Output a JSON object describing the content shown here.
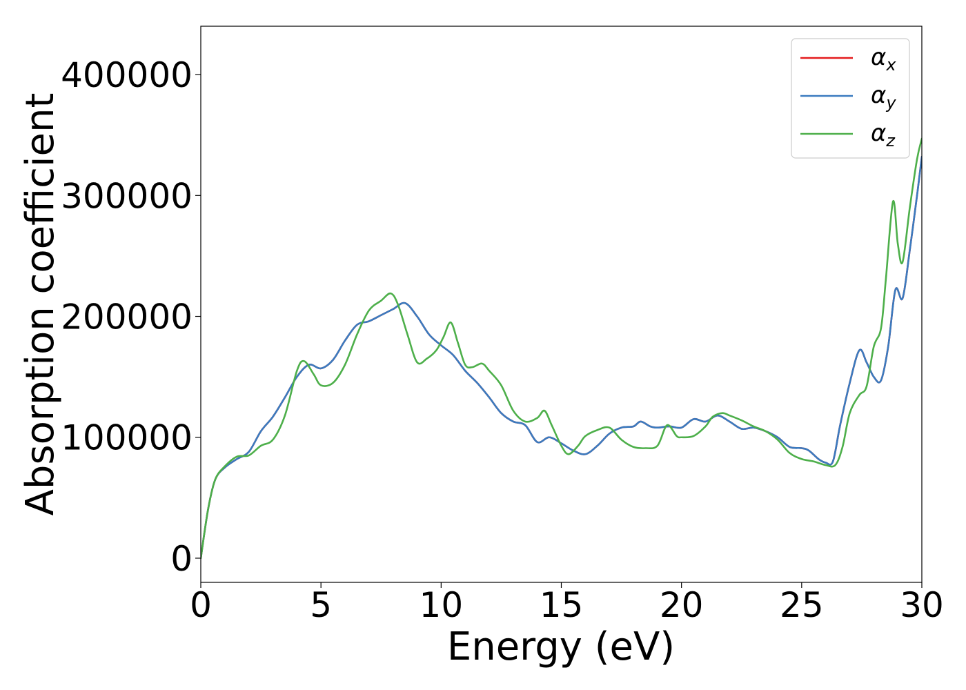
{
  "chart_data": {
    "type": "line",
    "title": "",
    "xlabel": "Energy (eV)",
    "ylabel": "Absorption coefficient",
    "xlim": [
      0,
      30
    ],
    "ylim": [
      -20000,
      440000
    ],
    "xticks": [
      0,
      5,
      10,
      15,
      20,
      25,
      30
    ],
    "yticks": [
      0,
      100000,
      200000,
      300000,
      400000
    ],
    "grid": false,
    "legend_position": "top-right",
    "series": [
      {
        "name": "α",
        "subscript": "x",
        "color": "#e41a1c",
        "x": [
          0,
          0.3,
          0.6,
          1.0,
          1.5,
          2.0,
          2.5,
          3.0,
          3.5,
          4.0,
          4.5,
          5.0,
          5.5,
          6.0,
          6.5,
          7.0,
          7.5,
          8.0,
          8.5,
          9.0,
          9.5,
          10.0,
          10.5,
          11.0,
          11.5,
          12.0,
          12.5,
          13.0,
          13.5,
          14.0,
          14.5,
          15.0,
          15.5,
          16.0,
          16.5,
          17.0,
          17.5,
          18.0,
          18.3,
          18.7,
          19.0,
          19.5,
          20.0,
          20.5,
          21.0,
          21.5,
          22.0,
          22.5,
          23.0,
          23.5,
          24.0,
          24.5,
          25.0,
          25.3,
          25.7,
          26.0,
          26.3,
          26.6,
          27.0,
          27.4,
          27.7,
          28.0,
          28.3,
          28.6,
          28.9,
          29.2,
          29.5,
          29.8,
          30.0
        ],
        "values": [
          0,
          40000,
          65000,
          75000,
          82000,
          88000,
          105000,
          117000,
          133000,
          150000,
          160000,
          157000,
          164000,
          180000,
          193000,
          196000,
          201000,
          206000,
          211000,
          200000,
          185000,
          176000,
          168000,
          155000,
          145000,
          133000,
          120000,
          113000,
          110000,
          96000,
          100000,
          95000,
          89000,
          86000,
          93000,
          103000,
          108000,
          109000,
          113000,
          109000,
          108000,
          109000,
          108000,
          115000,
          113000,
          118000,
          113000,
          107000,
          108000,
          105000,
          100000,
          92000,
          91000,
          89000,
          82000,
          79000,
          80000,
          110000,
          145000,
          172000,
          162000,
          150000,
          147000,
          175000,
          222000,
          215000,
          255000,
          300000,
          332000
        ]
      },
      {
        "name": "α",
        "subscript": "y",
        "color": "#3a7bbf",
        "x": [
          0,
          0.3,
          0.6,
          1.0,
          1.5,
          2.0,
          2.5,
          3.0,
          3.5,
          4.0,
          4.5,
          5.0,
          5.5,
          6.0,
          6.5,
          7.0,
          7.5,
          8.0,
          8.5,
          9.0,
          9.5,
          10.0,
          10.5,
          11.0,
          11.5,
          12.0,
          12.5,
          13.0,
          13.5,
          14.0,
          14.5,
          15.0,
          15.5,
          16.0,
          16.5,
          17.0,
          17.5,
          18.0,
          18.3,
          18.7,
          19.0,
          19.5,
          20.0,
          20.5,
          21.0,
          21.5,
          22.0,
          22.5,
          23.0,
          23.5,
          24.0,
          24.5,
          25.0,
          25.3,
          25.7,
          26.0,
          26.3,
          26.6,
          27.0,
          27.4,
          27.7,
          28.0,
          28.3,
          28.6,
          28.9,
          29.2,
          29.5,
          29.8,
          30.0
        ],
        "values": [
          0,
          40000,
          65000,
          75000,
          82000,
          88000,
          105000,
          117000,
          133000,
          150000,
          160000,
          157000,
          164000,
          180000,
          193000,
          196000,
          201000,
          206000,
          211000,
          200000,
          185000,
          176000,
          168000,
          155000,
          145000,
          133000,
          120000,
          113000,
          110000,
          96000,
          100000,
          95000,
          89000,
          86000,
          93000,
          103000,
          108000,
          109000,
          113000,
          109000,
          108000,
          109000,
          108000,
          115000,
          113000,
          118000,
          113000,
          107000,
          108000,
          105000,
          100000,
          92000,
          91000,
          89000,
          82000,
          79000,
          80000,
          110000,
          145000,
          172000,
          162000,
          150000,
          147000,
          175000,
          222000,
          215000,
          255000,
          300000,
          332000
        ]
      },
      {
        "name": "α",
        "subscript": "z",
        "color": "#4daf4a",
        "x": [
          0,
          0.3,
          0.6,
          1.0,
          1.5,
          2.0,
          2.5,
          3.0,
          3.5,
          4.0,
          4.3,
          4.7,
          5.0,
          5.5,
          6.0,
          6.5,
          7.0,
          7.5,
          7.9,
          8.2,
          8.6,
          9.0,
          9.4,
          9.8,
          10.1,
          10.4,
          10.7,
          11.0,
          11.3,
          11.7,
          12.0,
          12.5,
          13.0,
          13.5,
          14.0,
          14.3,
          14.6,
          15.0,
          15.3,
          15.7,
          16.0,
          16.5,
          17.0,
          17.5,
          18.0,
          18.5,
          19.0,
          19.4,
          19.8,
          20.0,
          20.5,
          21.0,
          21.3,
          21.7,
          22.0,
          22.5,
          23.0,
          23.5,
          24.0,
          24.5,
          25.0,
          25.5,
          26.0,
          26.4,
          26.7,
          27.0,
          27.4,
          27.7,
          28.0,
          28.3,
          28.5,
          28.8,
          29.0,
          29.2,
          29.5,
          29.8,
          30.0
        ],
        "values": [
          0,
          40000,
          65000,
          76000,
          84000,
          85000,
          93000,
          98000,
          118000,
          155000,
          163000,
          152000,
          143000,
          145000,
          160000,
          185000,
          205000,
          213000,
          219000,
          210000,
          185000,
          162000,
          165000,
          172000,
          183000,
          195000,
          178000,
          160000,
          158000,
          161000,
          155000,
          143000,
          122000,
          113000,
          116000,
          122000,
          110000,
          93000,
          86000,
          93000,
          101000,
          106000,
          108000,
          98000,
          92000,
          91000,
          93000,
          110000,
          101000,
          100000,
          101000,
          109000,
          117000,
          120000,
          118000,
          114000,
          109000,
          105000,
          98000,
          87000,
          82000,
          80000,
          77000,
          77000,
          92000,
          120000,
          135000,
          142000,
          175000,
          190000,
          230000,
          295000,
          260000,
          245000,
          290000,
          330000,
          347000
        ]
      }
    ]
  }
}
